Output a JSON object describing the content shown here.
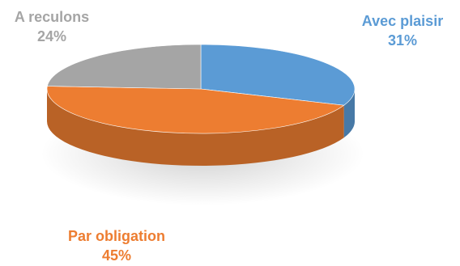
{
  "chart_data": {
    "type": "pie",
    "title": "",
    "legend": "none",
    "slices": [
      {
        "label": "Avec plaisir",
        "value": 31,
        "value_label": "31%",
        "color": "#5b9bd5"
      },
      {
        "label": "Par obligation",
        "value": 45,
        "value_label": "45%",
        "color": "#ed7d31"
      },
      {
        "label": "A reculons",
        "value": 24,
        "value_label": "24%",
        "color": "#a5a5a5"
      }
    ]
  }
}
